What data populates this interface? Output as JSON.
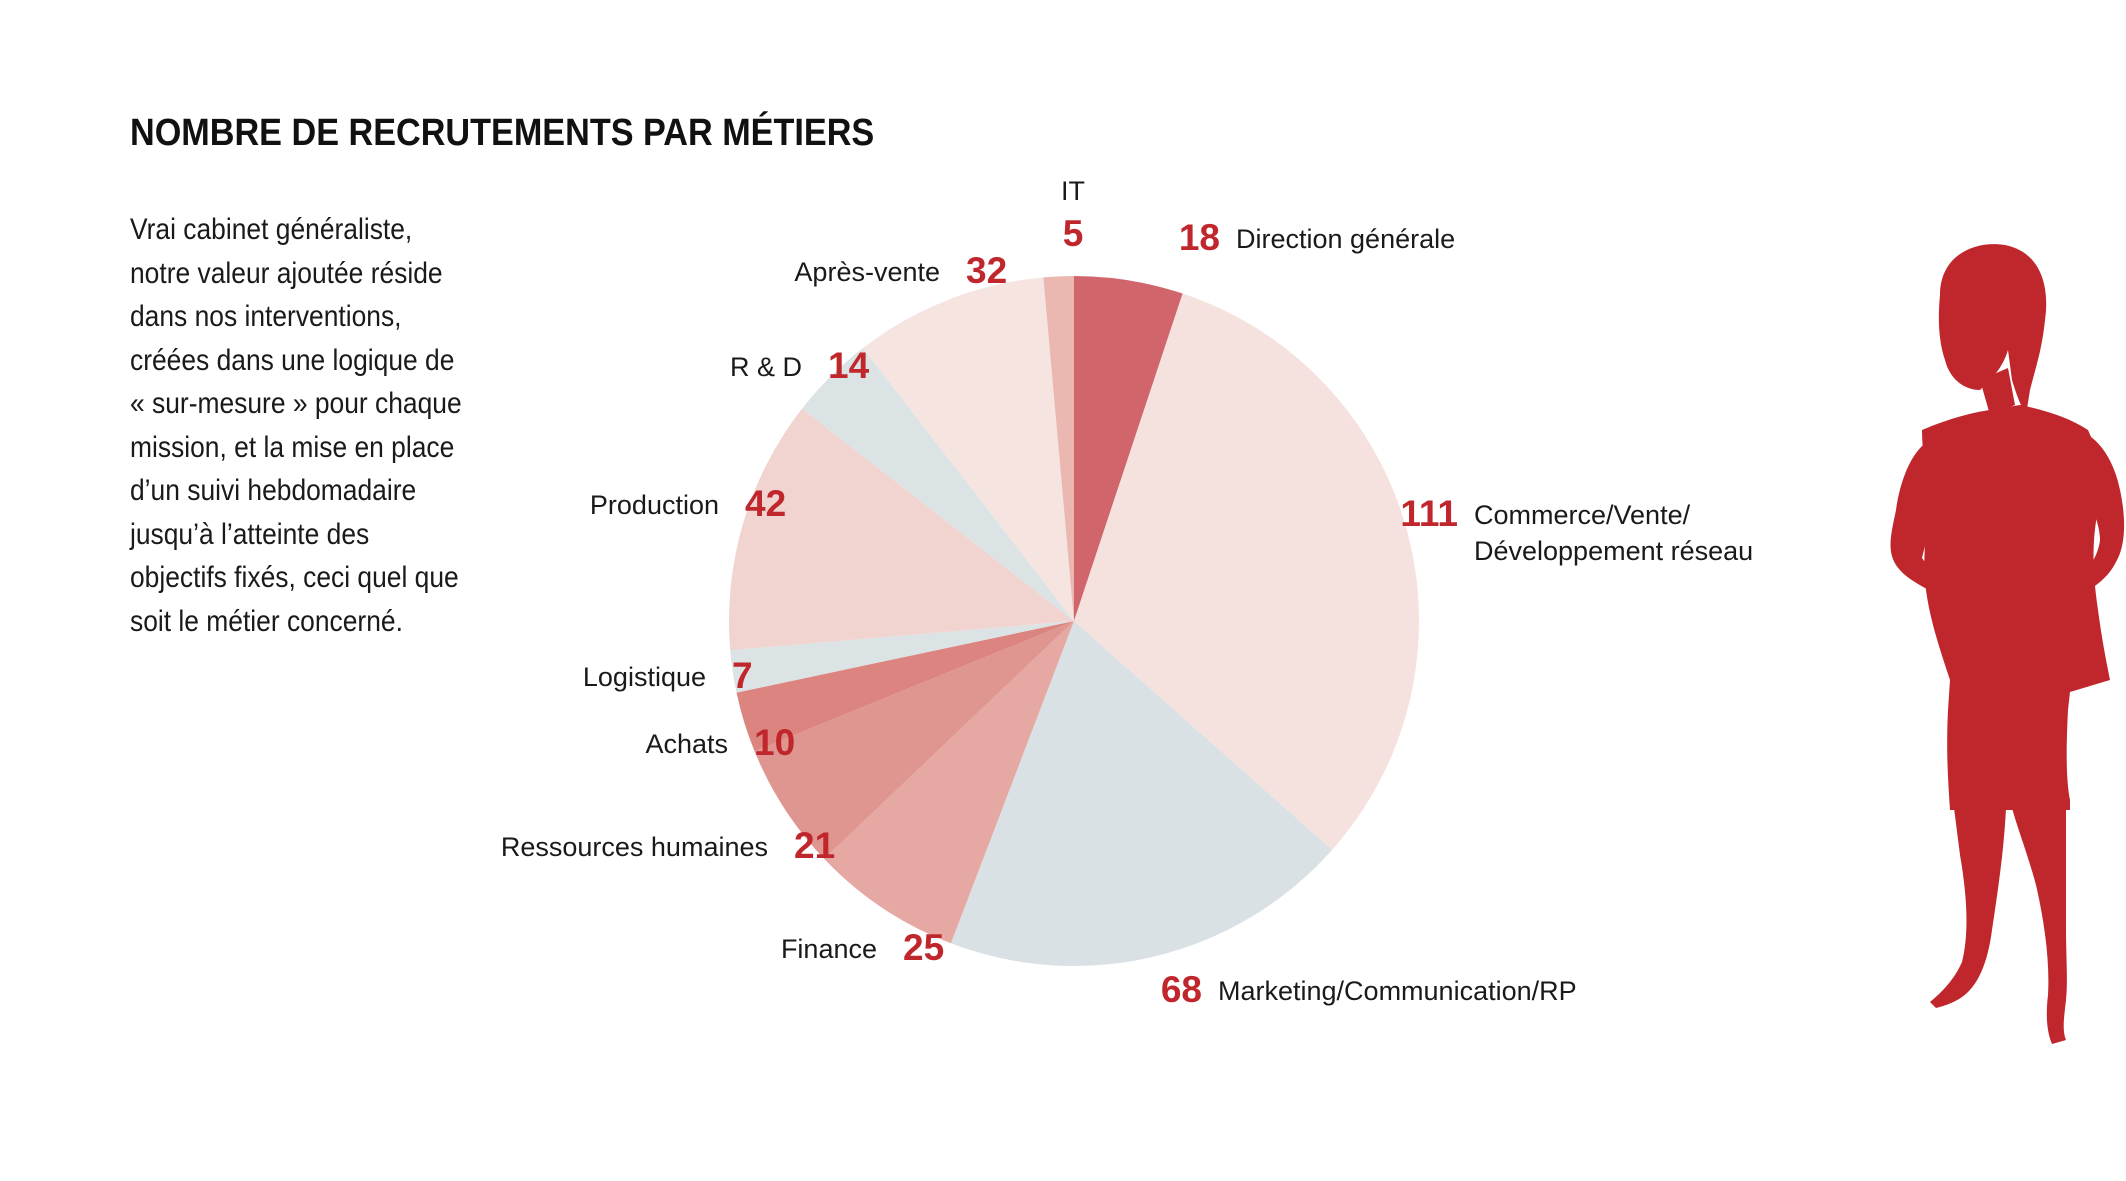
{
  "title": "NOMBRE DE RECRUTEMENTS PAR MÉTIERS",
  "description": [
    "Vrai cabinet généraliste,",
    "notre valeur ajoutée réside",
    "dans nos interventions,",
    "créées dans une logique de",
    "« sur-mesure » pour chaque",
    "mission, et la mise en place",
    "d’un suivi hebdomadaire",
    "jusqu’à l’atteinte des",
    "objectifs fixés, ceci quel que",
    "soit le métier concerné."
  ],
  "colors": {
    "value_text": "#c0272d",
    "silhouette": "#c0272d"
  },
  "chart_data": {
    "type": "pie",
    "title": "NOMBRE DE RECRUTEMENTS PAR MÉTIERS",
    "slices": [
      {
        "label": "Direction générale",
        "value": 18,
        "color": "#d1656c"
      },
      {
        "label": "Commerce/Vente/ Développement réseau",
        "label_lines": [
          "Commerce/Vente/",
          "Développement réseau"
        ],
        "value": 111,
        "color": "#f5e2de"
      },
      {
        "label": "Marketing/Communication/RP",
        "value": 68,
        "color": "#dae1e4"
      },
      {
        "label": "Finance",
        "value": 25,
        "color": "#e6a8a2"
      },
      {
        "label": "Ressources humaines",
        "value": 21,
        "color": "#e09690"
      },
      {
        "label": "Achats",
        "value": 10,
        "color": "#dc8580"
      },
      {
        "label": "Logistique",
        "value": 7,
        "color": "#dce3e5"
      },
      {
        "label": "Production",
        "value": 42,
        "color": "#f1d4d0"
      },
      {
        "label": "R & D",
        "value": 14,
        "color": "#dce3e5"
      },
      {
        "label": "Après-vente",
        "value": 32,
        "color": "#f6e4e0"
      },
      {
        "label": "IT",
        "value": 5,
        "color": "#ebb7b1"
      }
    ]
  }
}
